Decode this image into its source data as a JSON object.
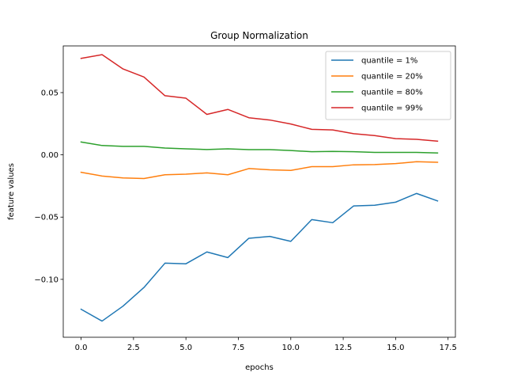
{
  "chart_data": {
    "type": "line",
    "title": "Group Normalization",
    "xlabel": "epochs",
    "ylabel": "feature values",
    "xlim": [
      -0.85,
      17.85
    ],
    "ylim": [
      -0.1465,
      0.0875
    ],
    "xticks": [
      0.0,
      2.5,
      5.0,
      7.5,
      10.0,
      12.5,
      15.0,
      17.5
    ],
    "xtick_labels": [
      "0.0",
      "2.5",
      "5.0",
      "7.5",
      "10.0",
      "12.5",
      "15.0",
      "17.5"
    ],
    "yticks": [
      -0.1,
      -0.05,
      0.0,
      0.05
    ],
    "ytick_labels": [
      "−0.10",
      "−0.05",
      "0.00",
      "0.05"
    ],
    "grid": false,
    "legend_position": "top-right",
    "x": [
      0,
      1,
      2,
      3,
      4,
      5,
      6,
      7,
      8,
      9,
      10,
      11,
      12,
      13,
      14,
      15,
      16,
      17
    ],
    "series": [
      {
        "name": "quantile = 1%",
        "color": "#1f77b4",
        "values": [
          -0.124,
          -0.1335,
          -0.1215,
          -0.1065,
          -0.087,
          -0.0875,
          -0.078,
          -0.0825,
          -0.067,
          -0.0655,
          -0.0695,
          -0.052,
          -0.0545,
          -0.041,
          -0.0405,
          -0.038,
          -0.031,
          -0.037
        ]
      },
      {
        "name": "quantile = 20%",
        "color": "#ff7f0e",
        "values": [
          -0.014,
          -0.017,
          -0.0185,
          -0.019,
          -0.016,
          -0.0155,
          -0.0145,
          -0.016,
          -0.011,
          -0.012,
          -0.0125,
          -0.0095,
          -0.0095,
          -0.008,
          -0.0078,
          -0.007,
          -0.0055,
          -0.006
        ]
      },
      {
        "name": "quantile = 80%",
        "color": "#2ca02c",
        "values": [
          0.0103,
          0.0075,
          0.0068,
          0.0068,
          0.0055,
          0.0048,
          0.0043,
          0.0048,
          0.0042,
          0.0042,
          0.0035,
          0.0025,
          0.0028,
          0.0025,
          0.002,
          0.002,
          0.002,
          0.0015
        ]
      },
      {
        "name": "quantile = 99%",
        "color": "#d62728",
        "values": [
          0.0775,
          0.0805,
          0.069,
          0.0625,
          0.0475,
          0.0455,
          0.0325,
          0.0365,
          0.0298,
          0.028,
          0.0248,
          0.0205,
          0.02,
          0.017,
          0.0155,
          0.013,
          0.0125,
          0.011
        ]
      }
    ]
  }
}
